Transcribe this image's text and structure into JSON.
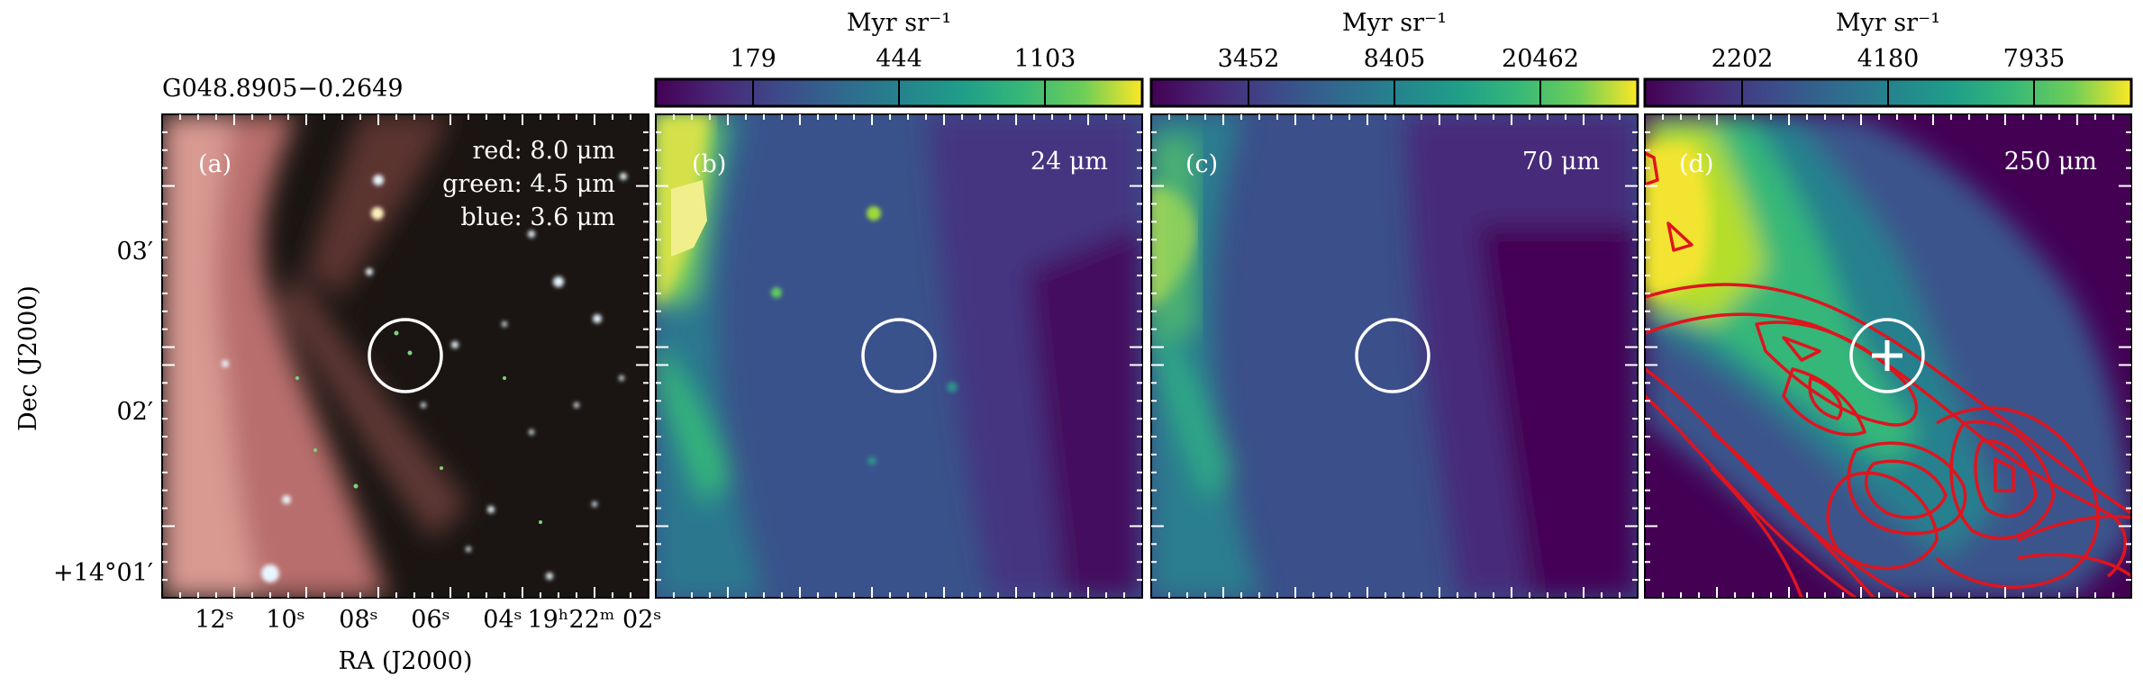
{
  "source_name": "G048.8905−0.2649",
  "axes": {
    "ylabel": "Dec (J2000)",
    "xlabel": "RA (J2000)",
    "yticks": [
      "03′",
      "02′",
      "+14°01′"
    ],
    "xticks": [
      "12ˢ",
      "10ˢ",
      "08ˢ",
      "06ˢ",
      "04ˢ",
      "19ʰ22ᵐ 02ˢ"
    ]
  },
  "panels": [
    {
      "id": "a",
      "label": "(a)",
      "legend": [
        "red: 8.0 μm",
        "green: 4.5 μm",
        "blue: 3.6 μm"
      ]
    },
    {
      "id": "b",
      "label": "(b)",
      "band": "24 μm",
      "colorbar": {
        "unit": "Myr sr⁻¹",
        "ticks": [
          "179",
          "444",
          "1103"
        ]
      }
    },
    {
      "id": "c",
      "label": "(c)",
      "band": "70 μm",
      "colorbar": {
        "unit": "Myr sr⁻¹",
        "ticks": [
          "3452",
          "8405",
          "20462"
        ]
      }
    },
    {
      "id": "d",
      "label": "(d)",
      "band": "250 μm",
      "colorbar": {
        "unit": "Myr sr⁻¹",
        "ticks": [
          "2202",
          "4180",
          "7935"
        ]
      }
    }
  ],
  "colors": {
    "marker": "#ffffff",
    "contour": "#e0141e",
    "frame": "#000000"
  },
  "colormap": "viridis"
}
